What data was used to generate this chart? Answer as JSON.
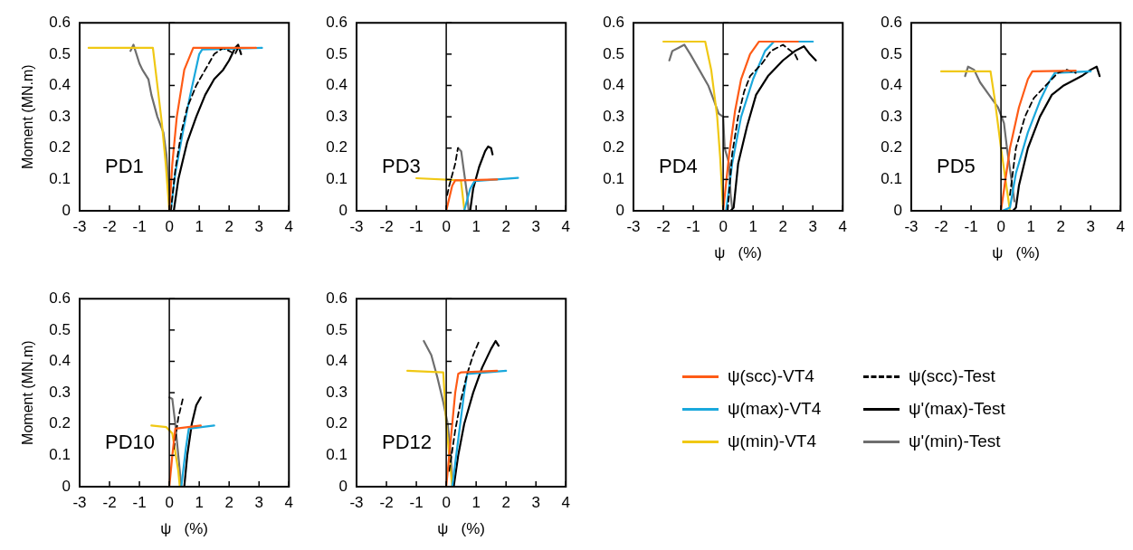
{
  "chart_data": [
    {
      "type": "line",
      "annotations": [
        "PD1"
      ],
      "ylabel": "Moment (MN.m)",
      "xlim": [
        -3,
        4
      ],
      "ylim": [
        0,
        0.6
      ],
      "xticks": [
        -3,
        -2,
        -1,
        0,
        1,
        2,
        3,
        4
      ],
      "yticks": [
        0,
        0.1,
        0.2,
        0.3,
        0.4,
        0.5,
        0.6
      ],
      "marker": "none",
      "ref_lines": [
        {
          "axis": "x",
          "value": 0
        }
      ],
      "series": [
        {
          "color": "#fe5b16",
          "x": [
            0,
            0.1,
            0.25,
            0.5,
            0.8,
            2.9
          ],
          "values": [
            0,
            0.15,
            0.3,
            0.45,
            0.52,
            0.52
          ]
        },
        {
          "color": "#000000",
          "line_style": "dashed",
          "x": [
            0.05,
            0.2,
            0.4,
            0.6,
            0.9,
            1.2,
            1.5,
            1.8,
            2.2,
            2.3
          ],
          "values": [
            0,
            0.13,
            0.25,
            0.33,
            0.4,
            0.45,
            0.5,
            0.52,
            0.5,
            0.52
          ]
        },
        {
          "color": "#1aa8dc",
          "x": [
            0.05,
            0.2,
            0.45,
            0.7,
            1.0,
            1.1,
            3.1
          ],
          "values": [
            0,
            0.12,
            0.25,
            0.37,
            0.5,
            0.515,
            0.52
          ]
        },
        {
          "color": "#000000",
          "x": [
            0.15,
            0.3,
            0.6,
            0.9,
            1.2,
            1.5,
            1.8,
            2.0,
            2.2,
            2.3,
            2.4
          ],
          "values": [
            0,
            0.1,
            0.22,
            0.3,
            0.37,
            0.42,
            0.45,
            0.48,
            0.52,
            0.53,
            0.5
          ]
        },
        {
          "color": "#f0c814",
          "x": [
            -2.7,
            -0.55,
            -0.4,
            -0.25,
            -0.12,
            0
          ],
          "values": [
            0.52,
            0.52,
            0.4,
            0.28,
            0.15,
            0
          ]
        },
        {
          "color": "#6e6e6e",
          "x": [
            -1.3,
            -1.2,
            -1.0,
            -0.9,
            -0.7,
            -0.6,
            -0.4,
            -0.2,
            -0.1,
            0
          ],
          "values": [
            0.51,
            0.53,
            0.47,
            0.45,
            0.42,
            0.37,
            0.3,
            0.25,
            0.18,
            0.05
          ]
        }
      ]
    },
    {
      "type": "line",
      "annotations": [
        "PD3"
      ],
      "xlim": [
        -3,
        4
      ],
      "ylim": [
        0,
        0.6
      ],
      "xticks": [
        -3,
        -2,
        -1,
        0,
        1,
        2,
        3,
        4
      ],
      "yticks": [
        0,
        0.1,
        0.2,
        0.3,
        0.4,
        0.5,
        0.6
      ],
      "marker": "none",
      "ref_lines": [
        {
          "axis": "x",
          "value": 0
        }
      ],
      "series": [
        {
          "color": "#fe5b16",
          "x": [
            0,
            0.2,
            0.3,
            1.7
          ],
          "values": [
            0,
            0.08,
            0.097,
            0.1
          ]
        },
        {
          "color": "#000000",
          "line_style": "dashed",
          "x": [
            0.03,
            0.1,
            0.3,
            0.39
          ],
          "values": [
            0.05,
            0.08,
            0.15,
            0.2
          ]
        },
        {
          "color": "#1aa8dc",
          "x": [
            0,
            0.6,
            0.8,
            0.95,
            2.4
          ],
          "values": [
            0,
            0,
            0.07,
            0.095,
            0.105
          ]
        },
        {
          "color": "#000000",
          "x": [
            0.8,
            0.9,
            1.1,
            1.3,
            1.4,
            1.5,
            1.55
          ],
          "values": [
            0,
            0.07,
            0.14,
            0.19,
            0.205,
            0.2,
            0.18
          ]
        },
        {
          "color": "#f0c814",
          "x": [
            -1,
            0.49,
            0.61
          ],
          "values": [
            0.104,
            0.097,
            0
          ]
        },
        {
          "color": "#6e6e6e",
          "x": [
            0.4,
            0.5,
            0.6,
            0.7,
            0.75
          ],
          "values": [
            0.2,
            0.19,
            0.12,
            0.05,
            0
          ]
        }
      ]
    },
    {
      "type": "line",
      "annotations": [
        "PD4"
      ],
      "xlabel": "ψ   (%)",
      "xlim": [
        -3,
        4
      ],
      "ylim": [
        0,
        0.6
      ],
      "xticks": [
        -3,
        -2,
        -1,
        0,
        1,
        2,
        3,
        4
      ],
      "yticks": [
        0,
        0.1,
        0.2,
        0.3,
        0.4,
        0.5,
        0.6
      ],
      "marker": "none",
      "ref_lines": [
        {
          "axis": "x",
          "value": 0
        }
      ],
      "series": [
        {
          "color": "#fe5b16",
          "x": [
            0,
            0.2,
            0.4,
            0.6,
            0.9,
            1.2,
            2.5
          ],
          "values": [
            0,
            0.18,
            0.32,
            0.42,
            0.5,
            0.54,
            0.54
          ]
        },
        {
          "color": "#000000",
          "line_style": "dashed",
          "x": [
            0.15,
            0.3,
            0.5,
            0.7,
            0.9,
            1.3,
            1.6,
            2.0,
            2.4,
            2.5
          ],
          "values": [
            0,
            0.18,
            0.3,
            0.38,
            0.43,
            0.47,
            0.51,
            0.53,
            0.5,
            0.48
          ]
        },
        {
          "color": "#1aa8dc",
          "x": [
            0.1,
            0.3,
            0.6,
            1.0,
            1.4,
            1.7,
            3.0
          ],
          "values": [
            0,
            0.15,
            0.3,
            0.42,
            0.51,
            0.54,
            0.54
          ]
        },
        {
          "color": "#000000",
          "x": [
            0.25,
            0.35,
            0.5,
            0.8,
            1.1,
            1.5,
            2.0,
            2.4,
            2.7,
            2.9,
            3.1
          ],
          "values": [
            0,
            0.01,
            0.15,
            0.27,
            0.37,
            0.43,
            0.48,
            0.51,
            0.525,
            0.5,
            0.48
          ]
        },
        {
          "color": "#f0c814",
          "x": [
            -2,
            -0.6,
            -0.4,
            -0.2,
            -0.1,
            0
          ],
          "values": [
            0.54,
            0.54,
            0.45,
            0.3,
            0.17,
            0
          ]
        },
        {
          "color": "#6e6e6e",
          "x": [
            -1.8,
            -1.7,
            -1.5,
            -1.3,
            -1.1,
            -0.8,
            -0.5,
            -0.3,
            -0.15,
            0,
            0.05,
            0.2,
            0.25,
            0.3
          ],
          "values": [
            0.48,
            0.51,
            0.52,
            0.53,
            0.5,
            0.45,
            0.4,
            0.35,
            0.31,
            0.3,
            0.2,
            0.15,
            0.05,
            0.01
          ]
        }
      ]
    },
    {
      "type": "line",
      "annotations": [
        "PD5"
      ],
      "xlabel": "ψ   (%)",
      "xlim": [
        -3,
        4
      ],
      "ylim": [
        0,
        0.6
      ],
      "xticks": [
        -3,
        -2,
        -1,
        0,
        1,
        2,
        3,
        4
      ],
      "yticks": [
        0,
        0.1,
        0.2,
        0.3,
        0.4,
        0.5,
        0.6
      ],
      "marker": "none",
      "ref_lines": [
        {
          "axis": "x",
          "value": 0
        }
      ],
      "series": [
        {
          "color": "#fe5b16",
          "x": [
            0,
            0.3,
            0.6,
            0.9,
            1.05,
            2.5
          ],
          "values": [
            0,
            0.2,
            0.33,
            0.42,
            0.445,
            0.447
          ]
        },
        {
          "color": "#000000",
          "line_style": "dashed",
          "x": [
            0.3,
            0.5,
            0.8,
            1.1,
            1.5,
            1.9,
            2.2,
            2.5
          ],
          "values": [
            0.05,
            0.2,
            0.3,
            0.36,
            0.4,
            0.44,
            0.45,
            0.44
          ]
        },
        {
          "color": "#1aa8dc",
          "x": [
            0.05,
            0.3,
            0.5,
            0.9,
            1.3,
            1.6,
            1.8,
            3.0
          ],
          "values": [
            0,
            0.01,
            0.12,
            0.25,
            0.35,
            0.41,
            0.44,
            0.445
          ]
        },
        {
          "color": "#000000",
          "x": [
            0.4,
            0.5,
            0.6,
            0.9,
            1.3,
            1.7,
            2.1,
            2.7,
            3.0,
            3.2,
            3.3
          ],
          "values": [
            0,
            0.01,
            0.08,
            0.2,
            0.3,
            0.37,
            0.4,
            0.43,
            0.45,
            0.46,
            0.43
          ]
        },
        {
          "color": "#f0c814",
          "x": [
            -2,
            -0.35,
            -0.2,
            0,
            0.15,
            0.3
          ],
          "values": [
            0.445,
            0.445,
            0.35,
            0.2,
            0.1,
            0
          ]
        },
        {
          "color": "#6e6e6e",
          "x": [
            -1.2,
            -1.1,
            -0.9,
            -0.7,
            -0.4,
            -0.1,
            0.1,
            0.2,
            0.35,
            0.45
          ],
          "values": [
            0.43,
            0.46,
            0.45,
            0.41,
            0.37,
            0.33,
            0.28,
            0.2,
            0.1,
            0.03
          ]
        }
      ]
    },
    {
      "type": "line",
      "annotations": [
        "PD10"
      ],
      "xlabel": "ψ   (%)",
      "ylabel": "Moment (MN.m)",
      "xlim": [
        -3,
        4
      ],
      "ylim": [
        0,
        0.6
      ],
      "xticks": [
        -3,
        -2,
        -1,
        0,
        1,
        2,
        3,
        4
      ],
      "yticks": [
        0,
        0.1,
        0.2,
        0.3,
        0.4,
        0.5,
        0.6
      ],
      "marker": "none",
      "ref_lines": [
        {
          "axis": "x",
          "value": 0
        }
      ],
      "series": [
        {
          "color": "#fe5b16",
          "x": [
            0,
            0.1,
            0.2,
            1.05
          ],
          "values": [
            0,
            0.1,
            0.185,
            0.195
          ]
        },
        {
          "color": "#000000",
          "line_style": "dashed",
          "x": [
            0.15,
            0.3,
            0.45
          ],
          "values": [
            0.12,
            0.22,
            0.28
          ]
        },
        {
          "color": "#1aa8dc",
          "x": [
            0,
            0.4,
            0.55,
            0.65,
            1.5
          ],
          "values": [
            0,
            0,
            0.12,
            0.185,
            0.195
          ]
        },
        {
          "color": "#000000",
          "x": [
            0.5,
            0.6,
            0.75,
            0.9,
            1.05
          ],
          "values": [
            0,
            0.1,
            0.2,
            0.26,
            0.285
          ]
        },
        {
          "color": "#f0c814",
          "x": [
            -0.6,
            -0.1,
            0.1,
            0.3,
            0.35
          ],
          "values": [
            0.195,
            0.19,
            0.17,
            0.05,
            0
          ]
        },
        {
          "color": "#6e6e6e",
          "x": [
            0,
            0.1,
            0.2,
            0.3,
            0.4
          ],
          "values": [
            0.285,
            0.28,
            0.2,
            0.1,
            0
          ]
        }
      ]
    },
    {
      "type": "line",
      "annotations": [
        "PD12"
      ],
      "xlabel": "ψ   (%)",
      "legend": "right",
      "xlim": [
        -3,
        4
      ],
      "ylim": [
        0,
        0.6
      ],
      "xticks": [
        -3,
        -2,
        -1,
        0,
        1,
        2,
        3,
        4
      ],
      "yticks": [
        0,
        0.1,
        0.2,
        0.3,
        0.4,
        0.5,
        0.6
      ],
      "marker": "none",
      "ref_lines": [
        {
          "axis": "x",
          "value": 0
        }
      ],
      "series": [
        {
          "name": "ψ(scc)-VT4",
          "color": "#fe5b16",
          "x": [
            0,
            0.15,
            0.3,
            0.4,
            0.5,
            1.7
          ],
          "values": [
            0,
            0.15,
            0.3,
            0.36,
            0.365,
            0.37
          ]
        },
        {
          "name": "ψ(scc)-Test",
          "color": "#000000",
          "line_style": "dashed",
          "x": [
            0.1,
            0.3,
            0.5,
            0.7,
            0.9,
            1.1
          ],
          "values": [
            0.05,
            0.18,
            0.28,
            0.36,
            0.42,
            0.465
          ]
        },
        {
          "name": "ψ(max)-VT4",
          "color": "#1aa8dc",
          "x": [
            0.1,
            0.2,
            0.4,
            0.6,
            0.7,
            2.0
          ],
          "values": [
            0,
            0,
            0.15,
            0.3,
            0.36,
            0.37
          ]
        },
        {
          "name": "ψ'(max)-Test",
          "color": "#000000",
          "x": [
            0.25,
            0.4,
            0.6,
            0.9,
            1.2,
            1.5,
            1.65,
            1.75
          ],
          "values": [
            0,
            0.1,
            0.2,
            0.3,
            0.38,
            0.44,
            0.465,
            0.45
          ]
        },
        {
          "name": "ψ(min)-VT4",
          "color": "#f0c814",
          "x": [
            -1.3,
            -0.1,
            0,
            0.15,
            0.2
          ],
          "values": [
            0.37,
            0.365,
            0.2,
            0.05,
            0
          ]
        },
        {
          "name": "ψ'(min)-Test",
          "color": "#6e6e6e",
          "x": [
            -0.75,
            -0.5,
            -0.3,
            -0.1,
            0.05,
            0.15,
            0.2
          ],
          "values": [
            0.465,
            0.42,
            0.35,
            0.27,
            0.2,
            0.1,
            0.02
          ]
        }
      ]
    }
  ]
}
